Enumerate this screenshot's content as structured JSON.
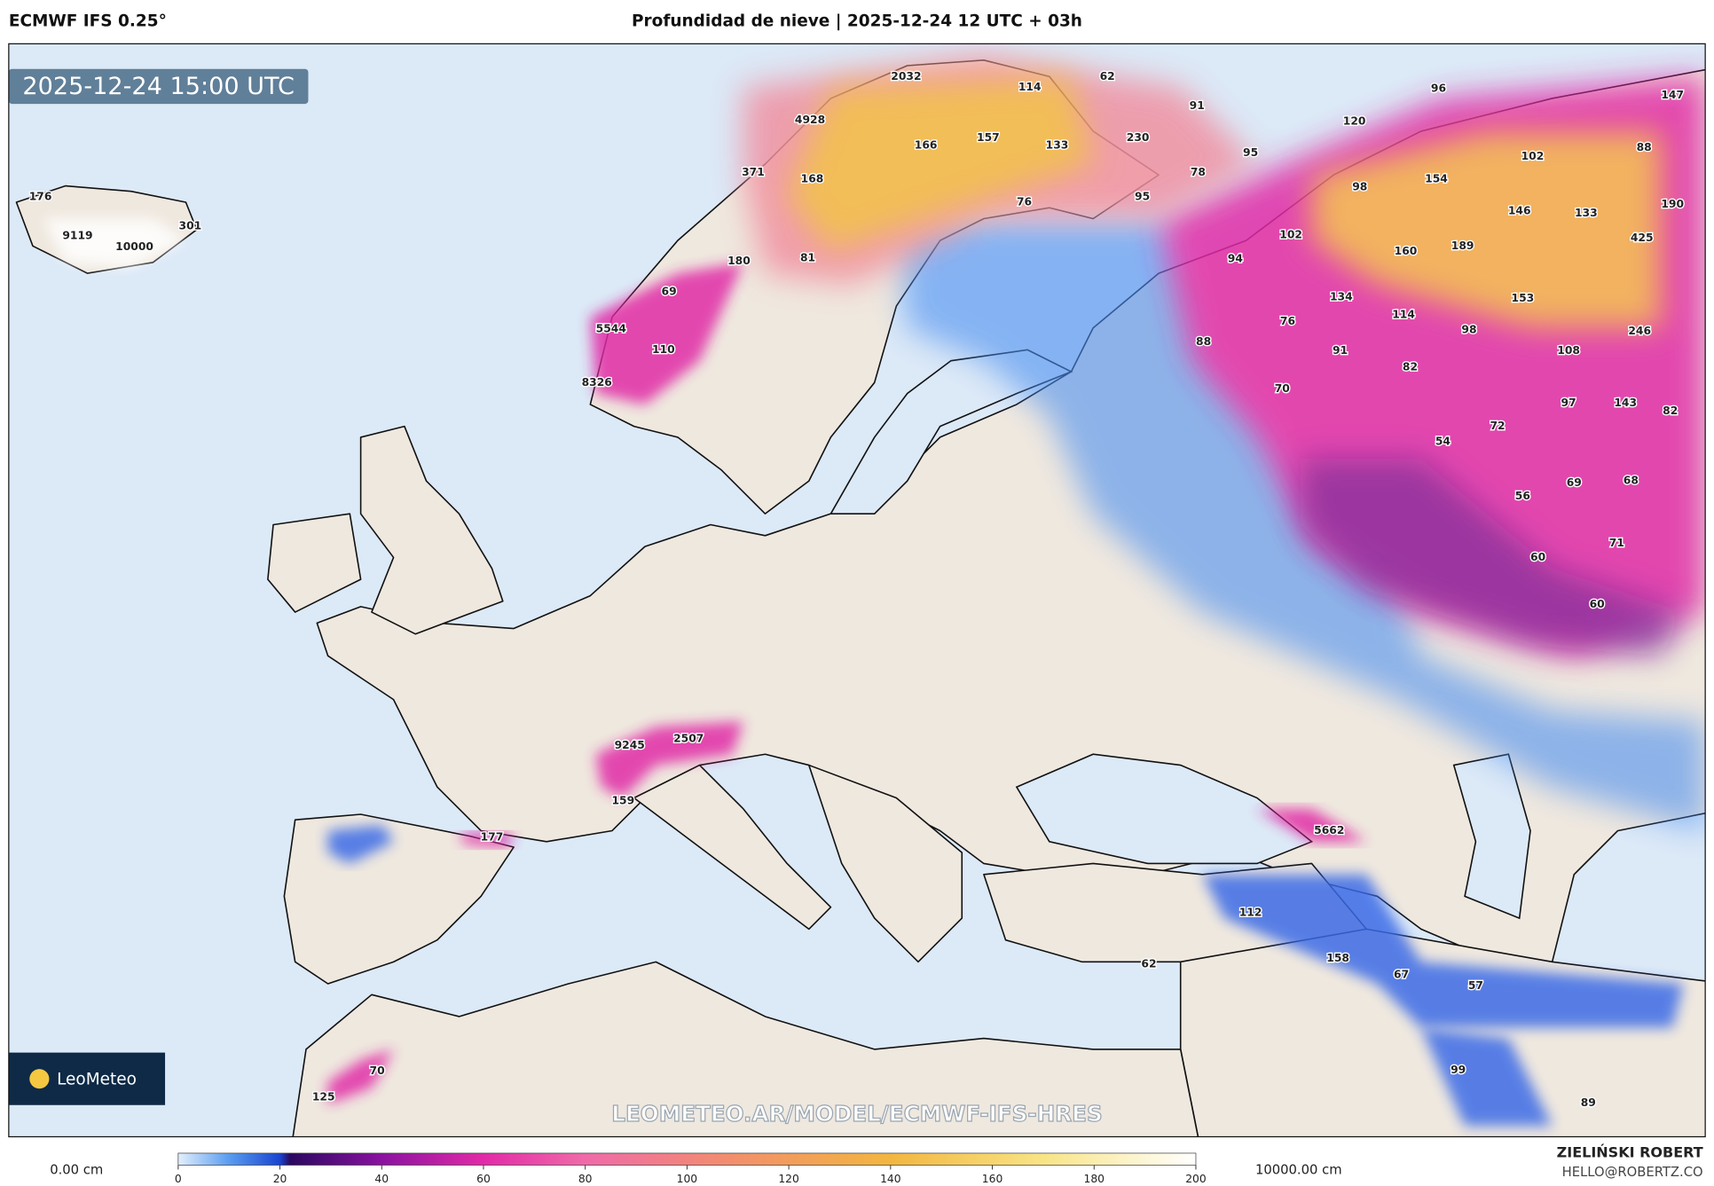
{
  "header": {
    "model": "ECMWF IFS 0.25°",
    "title": "Profundidad de nieve | 2025-12-24 12 UTC + 03h",
    "valid_time": "2025-12-24 15:00 UTC"
  },
  "map": {
    "labels": [
      2032,
      114,
      62,
      96,
      147,
      91,
      4928,
      120,
      166,
      157,
      133,
      230,
      95,
      102,
      88,
      371,
      168,
      78,
      154,
      98,
      176,
      76,
      95,
      146,
      133,
      190,
      301,
      9119,
      10000,
      102,
      189,
      160,
      425,
      180,
      81,
      94,
      69,
      134,
      153,
      114,
      98,
      246,
      5544,
      76,
      110,
      88,
      91,
      82,
      108,
      8326,
      70,
      97,
      143,
      82,
      72,
      54,
      68,
      69,
      56,
      71,
      60,
      60,
      2507,
      9245,
      159,
      177,
      5662,
      112,
      158,
      62,
      67,
      57,
      70,
      99,
      125,
      89
    ],
    "watermark": "LEOMETEO.AR/MODEL/ECMWF-IFS-HRES",
    "logo": "LeoMeteo"
  },
  "colorbar": {
    "min_label": "0.00 cm",
    "max_label": "10000.00 cm",
    "ticks": [
      0,
      20,
      40,
      60,
      80,
      100,
      120,
      140,
      160,
      180,
      200
    ]
  },
  "footer": {
    "author": "ZIELIŃSKI ROBERT",
    "contact": "HELLO@ROBERTZ.CO"
  }
}
